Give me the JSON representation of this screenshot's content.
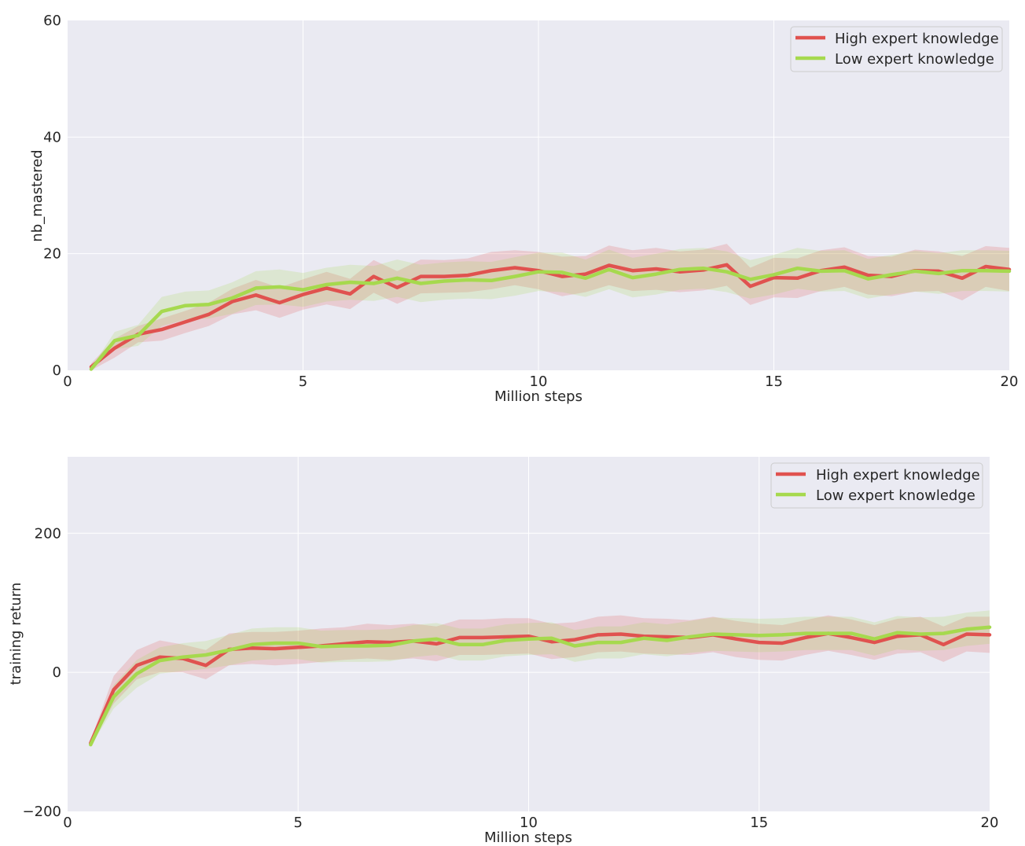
{
  "chart_data": [
    {
      "type": "line",
      "xlabel": "Million steps",
      "ylabel": "nb_mastered",
      "xlim": [
        0,
        20
      ],
      "ylim": [
        0,
        60
      ],
      "xticks": [
        0,
        5,
        10,
        15,
        20
      ],
      "yticks": [
        0,
        20,
        40,
        60
      ],
      "grid": true,
      "legend_position": "top-right",
      "x": [
        0.5,
        1,
        1.5,
        2,
        2.5,
        3,
        3.5,
        4,
        4.5,
        5,
        5.5,
        6,
        6.5,
        7,
        7.5,
        8,
        8.5,
        9,
        9.5,
        10,
        10.5,
        11,
        11.5,
        12,
        12.5,
        13,
        13.5,
        14,
        14.5,
        15,
        15.5,
        16,
        16.5,
        17,
        17.5,
        18,
        18.5,
        19,
        19.5,
        20
      ],
      "series": [
        {
          "name": "High expert knowledge",
          "color": "#e0524f",
          "values": [
            0.6,
            3.8,
            6.2,
            7.0,
            8.3,
            9.6,
            11.8,
            12.9,
            11.6,
            13.0,
            14.1,
            13.1,
            16.1,
            14.2,
            16.1,
            16.1,
            16.3,
            17.1,
            17.6,
            17.1,
            16.1,
            16.5,
            18.0,
            17.1,
            17.4,
            16.9,
            17.2,
            18.1,
            14.4,
            15.9,
            15.8,
            17.1,
            17.7,
            16.3,
            16.1,
            17.1,
            17.0,
            15.8,
            17.8,
            17.3
          ],
          "lower": [
            0.0,
            2.2,
            4.8,
            5.1,
            6.4,
            7.6,
            9.6,
            10.3,
            9.0,
            10.4,
            11.3,
            10.5,
            13.3,
            11.4,
            13.2,
            13.3,
            13.4,
            13.9,
            14.6,
            13.9,
            12.7,
            13.4,
            14.6,
            13.6,
            13.8,
            13.4,
            13.7,
            14.5,
            11.2,
            12.5,
            12.4,
            13.6,
            14.3,
            13.0,
            12.7,
            13.5,
            13.6,
            12.0,
            14.3,
            13.6
          ],
          "upper": [
            1.2,
            5.4,
            7.6,
            8.9,
            10.2,
            11.6,
            14.0,
            15.5,
            14.2,
            15.6,
            16.9,
            15.7,
            18.9,
            17.0,
            19.0,
            18.9,
            19.2,
            20.3,
            20.6,
            20.3,
            19.5,
            19.6,
            21.4,
            20.6,
            21.0,
            20.4,
            20.7,
            21.7,
            17.6,
            19.3,
            19.2,
            20.6,
            21.1,
            19.6,
            19.5,
            20.7,
            20.4,
            19.6,
            21.3,
            21.0
          ]
        },
        {
          "name": "Low expert knowledge",
          "color": "#a6d94e",
          "values": [
            0.2,
            5.1,
            6.0,
            10.1,
            11.1,
            11.3,
            12.4,
            14.1,
            14.3,
            13.8,
            14.7,
            15.1,
            14.9,
            15.8,
            14.9,
            15.3,
            15.5,
            15.4,
            16.1,
            16.9,
            16.8,
            15.8,
            17.3,
            15.9,
            16.5,
            17.3,
            17.5,
            16.9,
            15.6,
            16.4,
            17.5,
            17.0,
            17.1,
            15.7,
            16.4,
            17.0,
            16.6,
            17.1,
            17.1,
            17.0
          ],
          "lower": [
            0.0,
            3.6,
            4.2,
            7.6,
            8.7,
            8.9,
            9.7,
            11.2,
            11.3,
            10.9,
            11.8,
            12.1,
            11.9,
            12.6,
            11.7,
            12.1,
            12.3,
            12.2,
            12.8,
            13.6,
            13.4,
            12.6,
            13.9,
            12.5,
            13.0,
            13.8,
            14.0,
            13.4,
            12.3,
            13.0,
            14.0,
            13.5,
            13.6,
            12.3,
            13.0,
            13.5,
            13.1,
            13.6,
            13.6,
            13.5
          ],
          "upper": [
            0.4,
            6.6,
            7.8,
            12.6,
            13.5,
            13.7,
            15.1,
            17.0,
            17.3,
            16.7,
            17.6,
            18.1,
            17.9,
            19.0,
            18.1,
            18.5,
            18.7,
            18.6,
            19.4,
            20.2,
            20.2,
            19.0,
            20.7,
            19.3,
            20.0,
            20.8,
            21.0,
            20.4,
            18.9,
            19.8,
            21.0,
            20.5,
            20.6,
            19.1,
            19.8,
            20.5,
            20.1,
            20.6,
            20.6,
            20.5
          ]
        }
      ]
    },
    {
      "type": "line",
      "xlabel": "Million steps",
      "ylabel": "training return",
      "xlim": [
        0,
        20
      ],
      "ylim": [
        -200,
        310
      ],
      "xticks": [
        0,
        5,
        10,
        15,
        20
      ],
      "yticks": [
        -200,
        0,
        200
      ],
      "ytick_labels": [
        "−200",
        "0",
        "200"
      ],
      "grid": true,
      "legend_position": "top-right",
      "x": [
        0.5,
        1,
        1.5,
        2,
        2.5,
        3,
        3.5,
        4,
        4.5,
        5,
        5.5,
        6,
        6.5,
        7,
        7.5,
        8,
        8.5,
        9,
        9.5,
        10,
        10.5,
        11,
        11.5,
        12,
        12.5,
        13,
        13.5,
        14,
        14.5,
        15,
        15.5,
        16,
        16.5,
        17,
        17.5,
        18,
        18.5,
        19,
        19.5,
        20
      ],
      "series": [
        {
          "name": "High expert knowledge",
          "color": "#e0524f",
          "values": [
            -102,
            -25,
            10,
            22,
            20,
            10,
            33,
            35,
            34,
            36,
            38,
            41,
            44,
            43,
            45,
            41,
            50,
            50,
            51,
            52,
            44,
            47,
            54,
            55,
            52,
            51,
            50,
            54,
            48,
            43,
            42,
            50,
            56,
            50,
            43,
            52,
            54,
            40,
            55,
            54
          ],
          "lower": [
            -106,
            -45,
            -10,
            0,
            0,
            -10,
            10,
            12,
            10,
            12,
            15,
            18,
            20,
            18,
            20,
            16,
            25,
            25,
            26,
            27,
            19,
            22,
            29,
            30,
            27,
            26,
            25,
            29,
            22,
            18,
            17,
            25,
            31,
            25,
            18,
            27,
            29,
            15,
            30,
            28
          ],
          "upper": [
            -98,
            -5,
            32,
            46,
            40,
            32,
            56,
            58,
            58,
            60,
            63,
            65,
            70,
            68,
            70,
            66,
            76,
            76,
            78,
            78,
            70,
            72,
            80,
            82,
            78,
            77,
            75,
            80,
            74,
            70,
            68,
            75,
            82,
            76,
            68,
            77,
            80,
            66,
            80,
            80
          ]
        },
        {
          "name": "Low expert knowledge",
          "color": "#a6d94e",
          "values": [
            -104,
            -35,
            -2,
            17,
            22,
            25,
            32,
            40,
            42,
            42,
            37,
            38,
            38,
            39,
            45,
            48,
            40,
            40,
            46,
            48,
            49,
            38,
            43,
            43,
            49,
            46,
            51,
            55,
            54,
            53,
            54,
            56,
            56,
            56,
            48,
            57,
            55,
            56,
            62,
            65
          ],
          "lower": [
            -106,
            -52,
            -22,
            -2,
            2,
            5,
            10,
            17,
            19,
            19,
            14,
            15,
            15,
            16,
            22,
            25,
            17,
            17,
            23,
            25,
            26,
            15,
            20,
            20,
            26,
            23,
            28,
            31,
            30,
            29,
            30,
            32,
            32,
            32,
            24,
            33,
            31,
            32,
            38,
            41
          ],
          "upper": [
            -102,
            -18,
            18,
            36,
            42,
            45,
            54,
            63,
            65,
            65,
            60,
            61,
            61,
            62,
            68,
            71,
            63,
            63,
            69,
            71,
            72,
            61,
            66,
            66,
            72,
            69,
            74,
            79,
            78,
            77,
            78,
            80,
            80,
            80,
            72,
            81,
            79,
            80,
            86,
            89
          ]
        }
      ]
    }
  ]
}
